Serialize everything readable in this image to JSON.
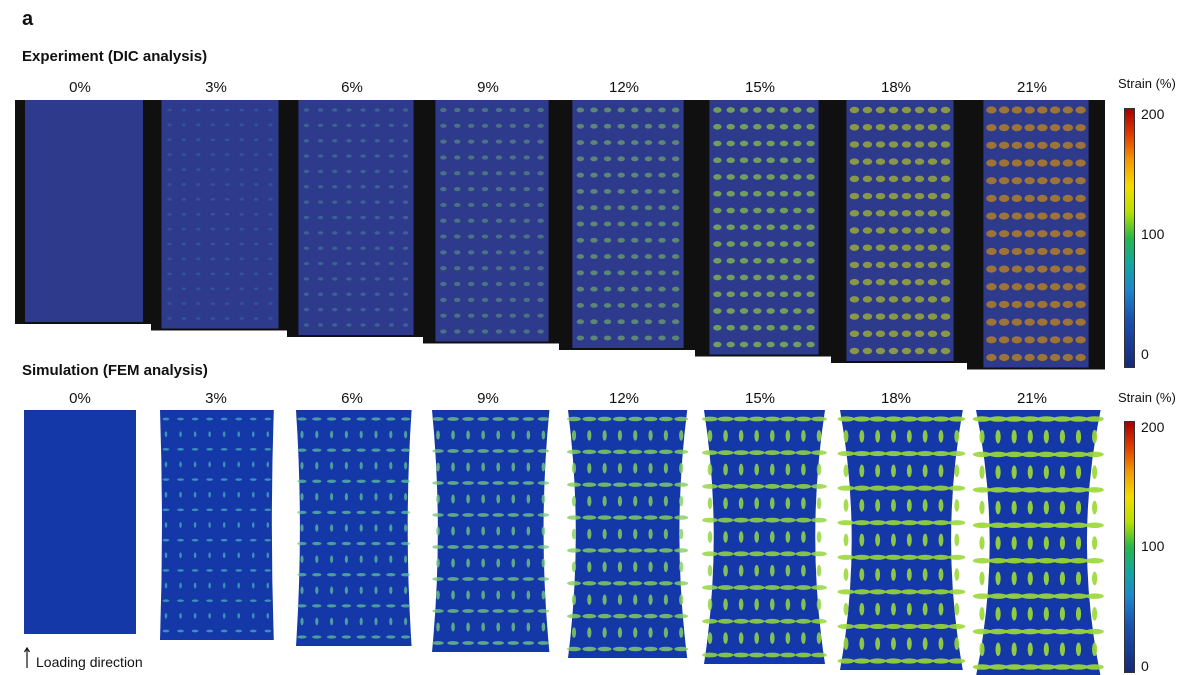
{
  "panel_label": "a",
  "experiment": {
    "title": "Experiment (DIC analysis)",
    "strains": [
      "0%",
      "3%",
      "6%",
      "9%",
      "12%",
      "15%",
      "18%",
      "21%"
    ],
    "levels": [
      0,
      0.06,
      0.18,
      0.3,
      0.42,
      0.55,
      0.68,
      0.8
    ]
  },
  "simulation": {
    "title": "Simulation (FEM analysis)",
    "strains": [
      "0%",
      "3%",
      "6%",
      "9%",
      "12%",
      "15%",
      "18%",
      "21%"
    ],
    "levels": [
      0,
      0.15,
      0.3,
      0.42,
      0.55,
      0.65,
      0.72,
      0.8
    ]
  },
  "colorbar": {
    "title": "Strain (%)",
    "ticks": [
      "200",
      "100",
      "0"
    ]
  },
  "loading_direction": "Loading direction",
  "colors": {
    "dic_background": "#2e3a8c",
    "fem_background": "#1538a8",
    "fem_pore_low": "#36b6e6",
    "fem_pore_high": "#9bd83a",
    "dic_pore_high": "#c0541a"
  }
}
